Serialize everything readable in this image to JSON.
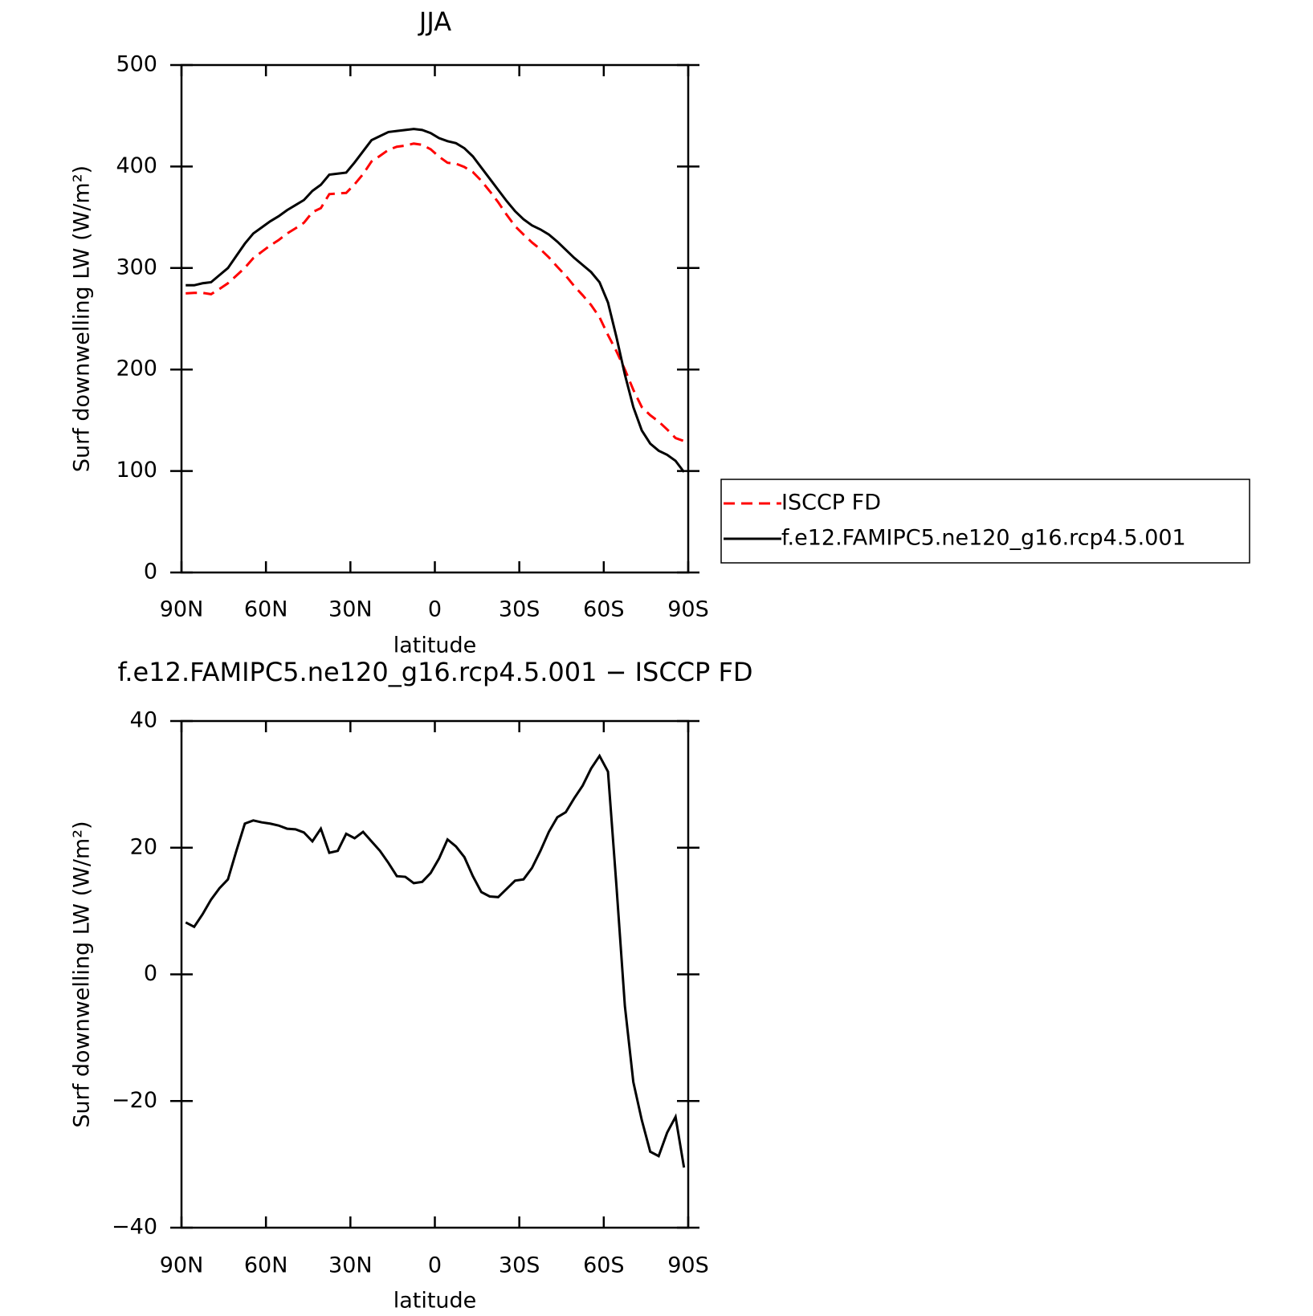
{
  "chart_data": [
    {
      "type": "line",
      "title": "JJA",
      "xlabel": "latitude",
      "ylabel": "Surf downwelling LW (W/m²)",
      "x": [
        88.5,
        85.5,
        82.5,
        79.5,
        76.5,
        73.5,
        70.5,
        67.5,
        64.5,
        61.5,
        58.5,
        55.5,
        52.5,
        49.5,
        46.5,
        43.5,
        40.5,
        37.5,
        34.5,
        31.5,
        28.5,
        25.5,
        22.5,
        19.5,
        16.5,
        13.5,
        10.5,
        7.5,
        4.5,
        1.5,
        -1.5,
        -4.5,
        -7.5,
        -10.5,
        -13.5,
        -16.5,
        -19.5,
        -22.5,
        -25.5,
        -28.5,
        -31.5,
        -34.5,
        -37.5,
        -40.5,
        -43.5,
        -46.5,
        -49.5,
        -52.5,
        -55.5,
        -58.5,
        -61.5,
        -64.5,
        -67.5,
        -70.5,
        -73.5,
        -76.5,
        -79.5,
        -82.5,
        -85.5,
        -88.5
      ],
      "xlim": [
        90,
        -90
      ],
      "xticks": [
        {
          "value": 90,
          "label": "90N"
        },
        {
          "value": 60,
          "label": "60N"
        },
        {
          "value": 30,
          "label": "30N"
        },
        0,
        {
          "value": -30,
          "label": "30S"
        },
        {
          "value": -60,
          "label": "60S"
        },
        {
          "value": -90,
          "label": "90S"
        }
      ],
      "ylim": [
        0,
        500
      ],
      "yticks": [
        0,
        100,
        200,
        300,
        400,
        500
      ],
      "legend": "right",
      "series": [
        {
          "name": "ISCCP FD",
          "color": "#ff0000",
          "style": "dashed",
          "values": [
            275,
            275.5,
            275.5,
            274.2,
            279.4,
            285,
            292.5,
            300.2,
            309.7,
            316,
            322.2,
            327.5,
            334,
            339.1,
            344.6,
            355,
            359,
            372.8,
            373.5,
            374,
            382.5,
            392.5,
            405,
            410.5,
            416.4,
            419.5,
            420.6,
            422.6,
            421.4,
            417,
            409.7,
            403.7,
            402.8,
            399.5,
            394.5,
            386,
            375.7,
            364.8,
            352.5,
            341.2,
            333,
            325.2,
            318.5,
            310.5,
            301.2,
            292.4,
            282.2,
            273.2,
            263.5,
            251.5,
            234,
            218,
            200,
            180,
            163,
            155,
            148.7,
            141,
            132.5,
            129.5
          ]
        },
        {
          "name": "f.e12.FAMIPC5.ne120_g16.rcp4.5.001",
          "color": "#000000",
          "style": "solid",
          "values": [
            283,
            283,
            285,
            286,
            293,
            300,
            312,
            324,
            334,
            340,
            346,
            351,
            357,
            362,
            367,
            376,
            382,
            392,
            393,
            394,
            404,
            415,
            426,
            430,
            434,
            435,
            436,
            437,
            436,
            433,
            428,
            425,
            423,
            418,
            410,
            399,
            388,
            377,
            366,
            356,
            348,
            342,
            338,
            333,
            326,
            318,
            310,
            303,
            296,
            286,
            266,
            232,
            195,
            163,
            140,
            127,
            120,
            116,
            110,
            99
          ]
        }
      ]
    },
    {
      "type": "line",
      "title": "f.e12.FAMIPC5.ne120_g16.rcp4.5.001 − ISCCP FD",
      "xlabel": "latitude",
      "ylabel": "Surf downwelling LW (W/m²)",
      "x": [
        88.5,
        85.5,
        82.5,
        79.5,
        76.5,
        73.5,
        70.5,
        67.5,
        64.5,
        61.5,
        58.5,
        55.5,
        52.5,
        49.5,
        46.5,
        43.5,
        40.5,
        37.5,
        34.5,
        31.5,
        28.5,
        25.5,
        22.5,
        19.5,
        16.5,
        13.5,
        10.5,
        7.5,
        4.5,
        1.5,
        -1.5,
        -4.5,
        -7.5,
        -10.5,
        -13.5,
        -16.5,
        -19.5,
        -22.5,
        -25.5,
        -28.5,
        -31.5,
        -34.5,
        -37.5,
        -40.5,
        -43.5,
        -46.5,
        -49.5,
        -52.5,
        -55.5,
        -58.5,
        -61.5,
        -64.5,
        -67.5,
        -70.5,
        -73.5,
        -76.5,
        -79.5,
        -82.5,
        -85.5,
        -88.5
      ],
      "xlim": [
        90,
        -90
      ],
      "xticks": [
        {
          "value": 90,
          "label": "90N"
        },
        {
          "value": 60,
          "label": "60N"
        },
        {
          "value": 30,
          "label": "30N"
        },
        0,
        {
          "value": -30,
          "label": "30S"
        },
        {
          "value": -60,
          "label": "60S"
        },
        {
          "value": -90,
          "label": "90S"
        }
      ],
      "ylim": [
        -40,
        40
      ],
      "yticks": [
        {
          "value": -40,
          "label": "−40"
        },
        {
          "value": -20,
          "label": "−20"
        },
        0,
        20,
        40
      ],
      "series": [
        {
          "color": "#000000",
          "style": "solid",
          "values": [
            8.2,
            7.5,
            9.5,
            11.8,
            13.6,
            15,
            19.5,
            23.8,
            24.3,
            24,
            23.8,
            23.5,
            23,
            22.9,
            22.4,
            21,
            23,
            19.2,
            19.5,
            22.2,
            21.5,
            22.5,
            21,
            19.5,
            17.6,
            15.5,
            15.4,
            14.4,
            14.6,
            16,
            18.3,
            21.3,
            20.2,
            18.5,
            15.5,
            13,
            12.3,
            12.2,
            13.5,
            14.8,
            15,
            16.8,
            19.5,
            22.5,
            24.8,
            25.6,
            27.8,
            29.8,
            32.5,
            34.5,
            32,
            14,
            -5,
            -17,
            -23,
            -28,
            -28.7,
            -25,
            -22.5,
            -30.5
          ]
        }
      ]
    }
  ]
}
